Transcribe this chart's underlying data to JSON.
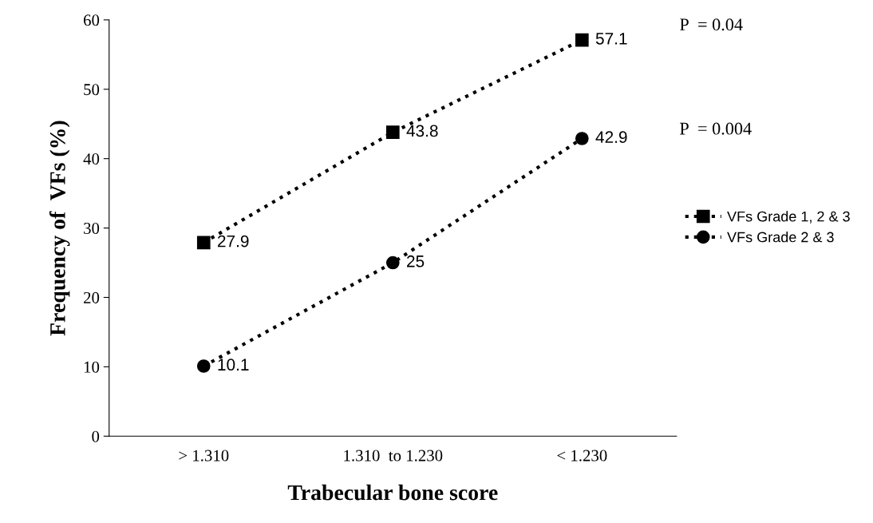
{
  "chart_data": {
    "type": "line",
    "xlabel": "Trabecular bone score",
    "ylabel": "Frequency of  VFs (%)",
    "categories": [
      "> 1.310",
      "1.310  to 1.230",
      "< 1.230"
    ],
    "series": [
      {
        "name": "VFs Grade 2 & 3",
        "color": "#000000",
        "marker": "circle",
        "values": [
          10.1,
          25,
          42.9
        ]
      },
      {
        "name": "VFs Grade 1, 2 & 3",
        "color": "#000000",
        "marker": "square",
        "values": [
          27.9,
          43.8,
          57.1
        ]
      }
    ],
    "ylim": [
      0,
      60
    ],
    "yticks": [
      0,
      10,
      20,
      30,
      40,
      50,
      60
    ],
    "line_style": "dotted",
    "data_labels": true,
    "legend": "right",
    "grid": false,
    "annotations": [
      "P  = 0.04",
      "P  = 0.004"
    ]
  }
}
